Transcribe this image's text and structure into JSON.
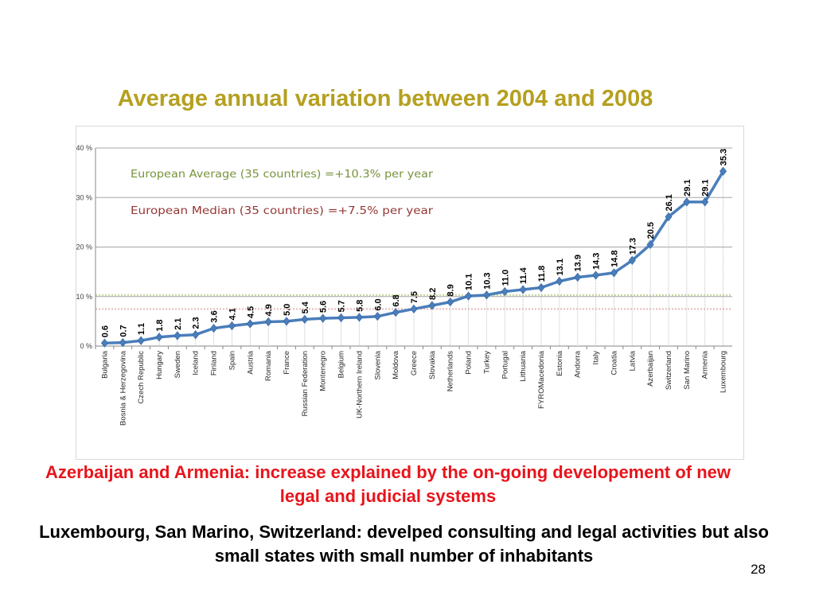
{
  "slide": {
    "title": "Average annual variation between 2004 and 2008",
    "caption_red": "Azerbaijan and Armenia: increase explained by the on-going developement of new legal and judicial systems",
    "caption_black": "Luxembourg, San Marino, Switzerland: develped consulting and legal activities but also small states with small number of inhabitants",
    "page_number": "28"
  },
  "chart_data": {
    "type": "line",
    "title": "Average annual variation between 2004 and 2008",
    "xlabel": "",
    "ylabel": "",
    "ylim": [
      0,
      40
    ],
    "y_ticks": [
      "0 %",
      "10 %",
      "20 %",
      "30 %",
      "40 %"
    ],
    "y_tick_values": [
      0,
      10,
      20,
      30,
      40
    ],
    "grid": true,
    "categories": [
      "Bulgaria",
      "Bosnia & Herzegovina",
      "Czech Republic",
      "Hungary",
      "Sweden",
      "Iceland",
      "Finland",
      "Spain",
      "Austria",
      "Romania",
      "France",
      "Russian Federation",
      "Montenegro",
      "Belgium",
      "UK-Northern Ireland",
      "Slovenia",
      "Moldova",
      "Greece",
      "Slovakia",
      "Netherlands",
      "Poland",
      "Turkey",
      "Portugal",
      "Lithuania",
      "FYROMacedonia",
      "Estonia",
      "Andorra",
      "Italy",
      "Croatia",
      "Latvia",
      "Azerbaijan",
      "Switzerland",
      "San Marino",
      "Armenia",
      "Luxembourg"
    ],
    "values": [
      0.6,
      0.7,
      1.1,
      1.8,
      2.1,
      2.3,
      3.6,
      4.1,
      4.5,
      4.9,
      5.0,
      5.4,
      5.6,
      5.7,
      5.8,
      6.0,
      6.8,
      7.5,
      8.2,
      8.9,
      10.1,
      10.3,
      11.0,
      11.4,
      11.8,
      13.1,
      13.9,
      14.3,
      14.8,
      17.3,
      20.5,
      26.1,
      29.1,
      29.1,
      35.3
    ],
    "data_labels": [
      "0.6",
      "0.7",
      "1.1",
      "1.8",
      "2.1",
      "2.3",
      "3.6",
      "4.1",
      "4.5",
      "4.9",
      "5.0",
      "5.4",
      "5.6",
      "5.7",
      "5.8",
      "6.0",
      "6.8",
      "7.5",
      "8.2",
      "8.9",
      "10.1",
      "10.3",
      "11.0",
      "11.4",
      "11.8",
      "13.1",
      "13.9",
      "14.3",
      "14.8",
      "17.3",
      "20.5",
      "26.1",
      "29.1",
      "29.1",
      "35.3"
    ],
    "annotations": [
      {
        "text": "European Average (35 countries) =+10.3% per year",
        "color": "#77933c"
      },
      {
        "text": "European Median (35 countries) =+7.5% per year",
        "color": "#953735"
      }
    ],
    "reference_lines": [
      {
        "value": 10.3,
        "color": "#c3d69b"
      },
      {
        "value": 7.5,
        "color": "#e6b9b8"
      }
    ],
    "line_color": "#4a7ebb"
  }
}
